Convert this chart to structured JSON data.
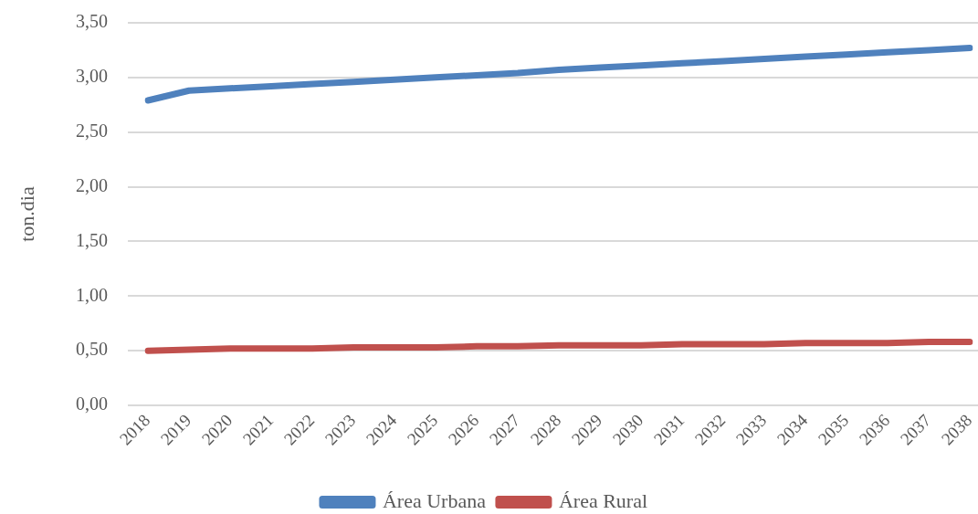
{
  "chart_data": {
    "type": "line",
    "ylabel": "ton.dia",
    "categories": [
      "2018",
      "2019",
      "2020",
      "2021",
      "2022",
      "2023",
      "2024",
      "2025",
      "2026",
      "2027",
      "2028",
      "2029",
      "2030",
      "2031",
      "2032",
      "2033",
      "2034",
      "2035",
      "2036",
      "2037",
      "2038"
    ],
    "series": [
      {
        "name": "Área Urbana",
        "color": "#4f81bd",
        "values": [
          2.79,
          2.88,
          2.9,
          2.92,
          2.94,
          2.96,
          2.98,
          3.0,
          3.02,
          3.04,
          3.07,
          3.09,
          3.11,
          3.13,
          3.15,
          3.17,
          3.19,
          3.21,
          3.23,
          3.25,
          3.27
        ]
      },
      {
        "name": "Área Rural",
        "color": "#c0504d",
        "values": [
          0.5,
          0.51,
          0.52,
          0.52,
          0.52,
          0.53,
          0.53,
          0.53,
          0.54,
          0.54,
          0.55,
          0.55,
          0.55,
          0.56,
          0.56,
          0.56,
          0.57,
          0.57,
          0.57,
          0.58,
          0.58
        ]
      }
    ],
    "ylim": [
      0,
      3.5
    ],
    "yticks": [
      {
        "value": 0,
        "label": "0,00"
      },
      {
        "value": 0.5,
        "label": "0,50"
      },
      {
        "value": 1,
        "label": "1,00"
      },
      {
        "value": 1.5,
        "label": "1,50"
      },
      {
        "value": 2,
        "label": "2,00"
      },
      {
        "value": 2.5,
        "label": "2,50"
      },
      {
        "value": 3,
        "label": "3,00"
      },
      {
        "value": 3.5,
        "label": "3,50"
      }
    ],
    "grid": "y",
    "legend": "bottom",
    "marker": "none",
    "line_style": "solid"
  }
}
